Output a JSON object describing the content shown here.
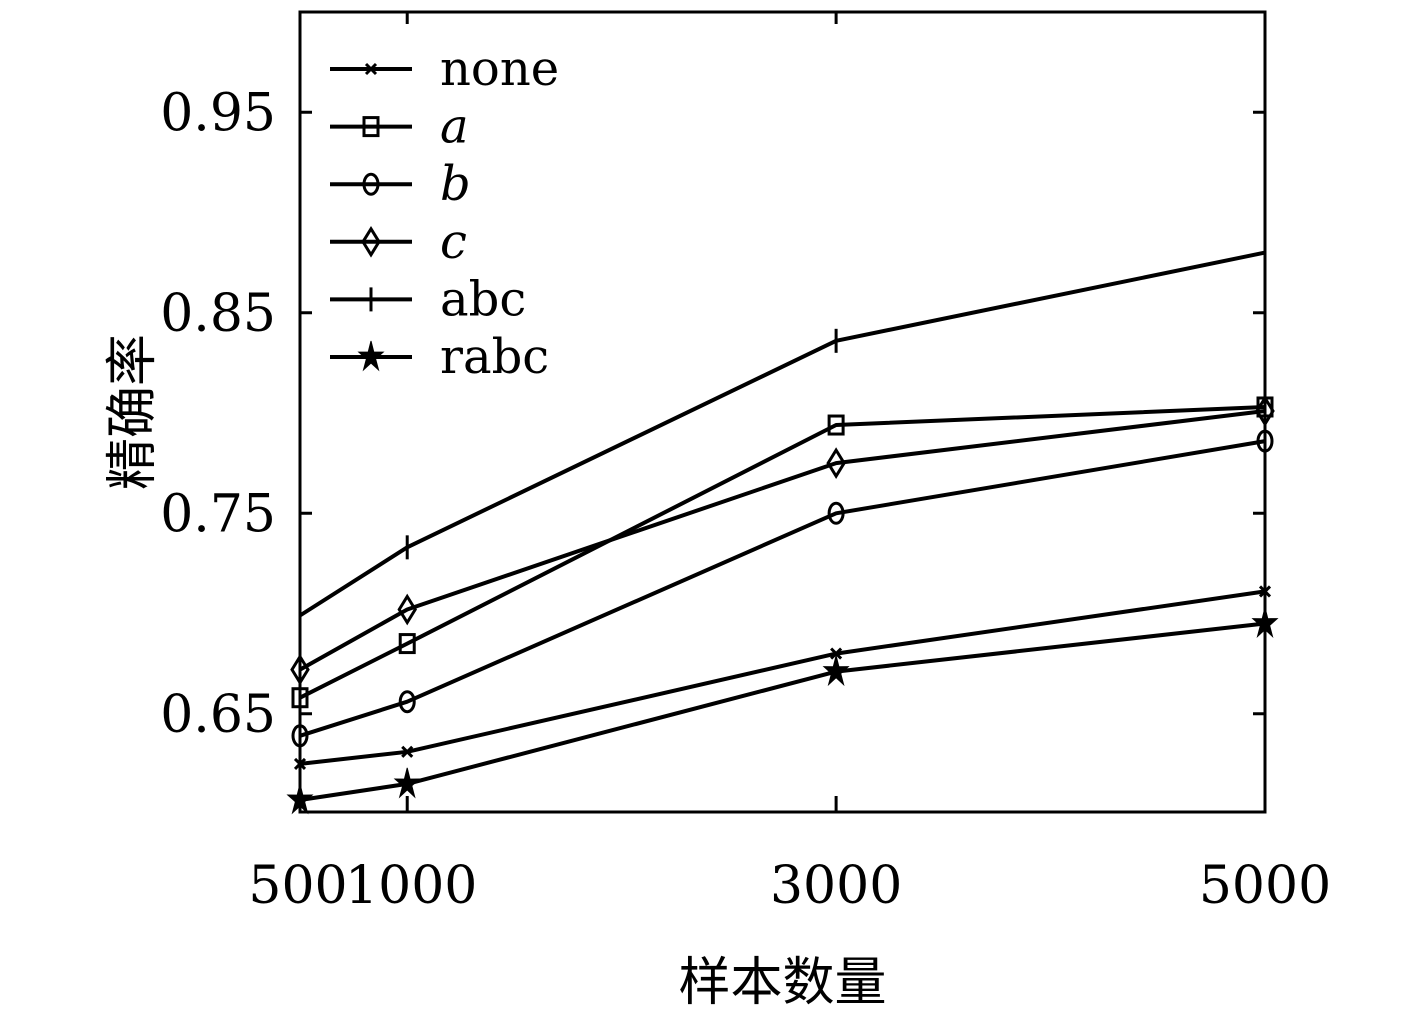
{
  "chart_data": {
    "type": "line",
    "title": "",
    "xlabel": "样本数量",
    "ylabel": "精确率",
    "x": [
      500,
      1000,
      3000,
      5000
    ],
    "x_tick_labels": [
      "500",
      "1000",
      "3000",
      "5000"
    ],
    "xlim": [
      500,
      5000
    ],
    "y_ticks": [
      0.65,
      0.75,
      0.85,
      0.95
    ],
    "y_tick_labels": [
      "0.65",
      "0.75",
      "0.85",
      "0.95"
    ],
    "ylim": [
      0.601,
      1.0
    ],
    "grid": false,
    "legend_position": "top-left",
    "series": [
      {
        "name": "none",
        "marker": "x",
        "italic": false,
        "values": [
          0.625,
          0.631,
          0.68,
          0.711
        ]
      },
      {
        "name": "a",
        "marker": "square",
        "italic": true,
        "values": [
          0.658,
          0.685,
          0.794,
          0.803
        ]
      },
      {
        "name": "b",
        "marker": "circle",
        "italic": true,
        "values": [
          0.639,
          0.656,
          0.75,
          0.786
        ]
      },
      {
        "name": "c",
        "marker": "diamond",
        "italic": true,
        "values": [
          0.672,
          0.702,
          0.775,
          0.801
        ]
      },
      {
        "name": "abc",
        "marker": "plus",
        "italic": false,
        "values": [
          0.699,
          0.733,
          0.836,
          0.88
        ]
      },
      {
        "name": "rabc",
        "marker": "star",
        "italic": false,
        "values": [
          0.607,
          0.615,
          0.671,
          0.695
        ]
      }
    ]
  }
}
